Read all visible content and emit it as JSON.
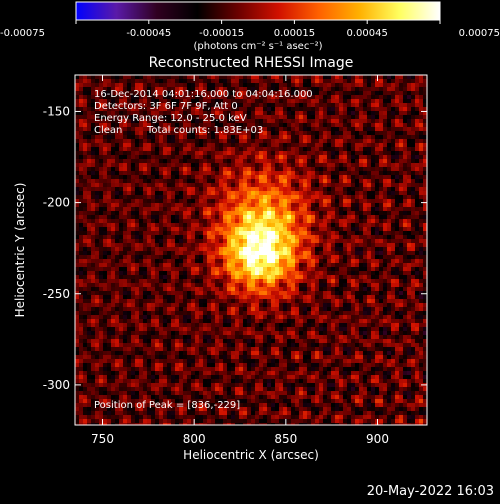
{
  "chart_data": {
    "type": "heatmap",
    "title": "Reconstructed RHESSI Image",
    "xlabel": "Heliocentric X (arcsec)",
    "ylabel": "Heliocentric Y (arcsec)",
    "xlim": [
      735,
      927
    ],
    "ylim": [
      -322,
      -130
    ],
    "x_ticks": [
      750,
      800,
      850,
      900
    ],
    "y_ticks": [
      -150,
      -200,
      -250,
      -300
    ],
    "colorbar": {
      "range": [
        -0.00075,
        0.00075
      ],
      "ticks": [
        "-0.00075",
        "-0.00045",
        "-0.00015",
        "0.00015",
        "0.00045",
        "0.00075"
      ],
      "unit_label": "(photons cm⁻² s⁻¹ asec⁻²)",
      "colors": [
        "#0000ff",
        "#5a1aa8",
        "#300020",
        "#000000",
        "#6a0000",
        "#d01000",
        "#ff6000",
        "#ffb000",
        "#ffff60",
        "#ffffff"
      ]
    },
    "peak": [
      836,
      -229
    ],
    "sources": [
      {
        "x": 836,
        "y": -229,
        "peak": 0.00072,
        "sigma": 14
      },
      {
        "x": 838,
        "y": -205,
        "peak": 0.0004,
        "sigma": 18
      }
    ]
  },
  "annotations": {
    "time_range": "16-Dec-2014 04:01:16.000 to 04:04:16.000",
    "detectors": "Detectors: 3F 6F 7F 9F, Att 0",
    "energy_range": "Energy Range: 12.0 - 25.0 keV",
    "method": "Clean",
    "total_counts": "Total counts: 1.83E+03",
    "peak_position": "Position of Peak = [836,-229]"
  },
  "footer_date": "20-May-2022 16:03"
}
